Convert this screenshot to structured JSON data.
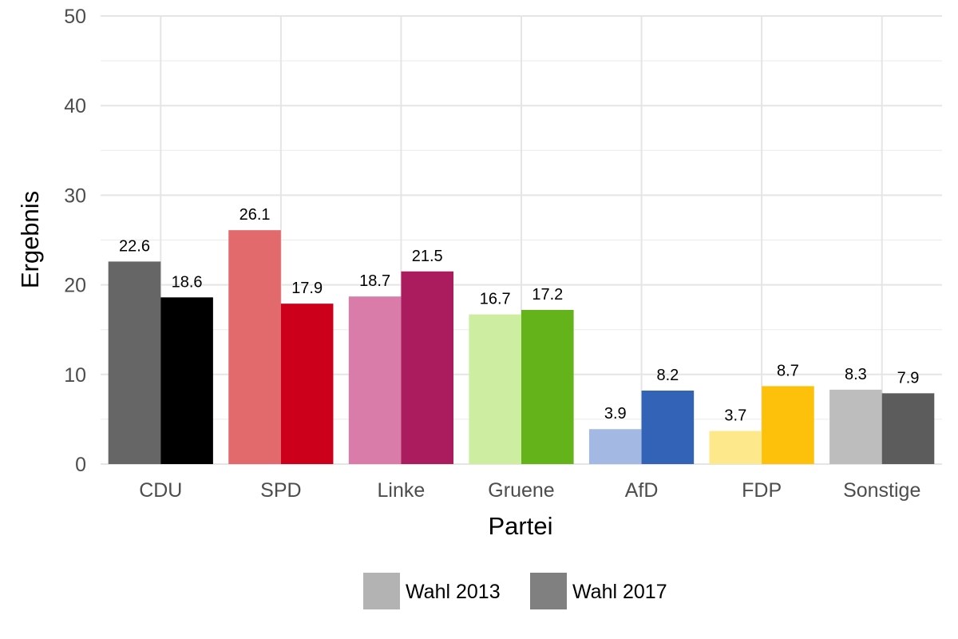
{
  "chart_data": {
    "type": "bar",
    "xlabel": "Partei",
    "ylabel": "Ergebnis",
    "ylim": [
      0,
      50
    ],
    "yticks": [
      0,
      10,
      20,
      30,
      40,
      50
    ],
    "grid": true,
    "legend_position": "bottom",
    "categories": [
      "CDU",
      "SPD",
      "Linke",
      "Gruene",
      "AfD",
      "FDP",
      "Sonstige"
    ],
    "series": [
      {
        "name": "Wahl 2013",
        "values": [
          22.6,
          26.1,
          18.7,
          16.7,
          3.9,
          3.7,
          8.3
        ],
        "colors": [
          "#666666",
          "#e36a6c",
          "#d97caa",
          "#cdeda0",
          "#a3b8e3",
          "#fde98c",
          "#bdbdbd"
        ],
        "legend_color": "#b3b3b3"
      },
      {
        "name": "Wahl 2017",
        "values": [
          18.6,
          17.9,
          21.5,
          17.2,
          8.2,
          8.7,
          7.9
        ],
        "colors": [
          "#000000",
          "#cd001b",
          "#ab1c5f",
          "#64b31a",
          "#3363b6",
          "#fdc10c",
          "#5c5c5c"
        ],
        "legend_color": "#808080"
      }
    ]
  }
}
